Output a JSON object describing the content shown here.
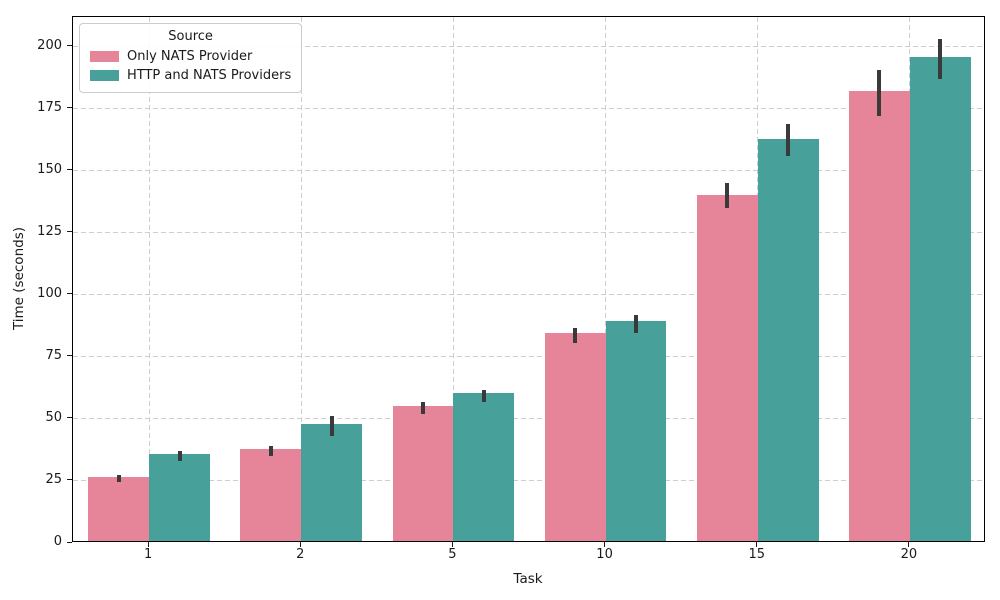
{
  "chart_data": {
    "type": "bar",
    "title": "",
    "xlabel": "Task",
    "ylabel": "Time (seconds)",
    "categories": [
      "1",
      "2",
      "5",
      "10",
      "15",
      "20"
    ],
    "series": [
      {
        "name": "Only NATS Provider",
        "color": "#e6849a",
        "values": [
          26,
          37,
          54.5,
          84,
          139.5,
          181.5
        ],
        "err_lo": [
          24.5,
          35,
          52,
          80.5,
          135,
          172
        ],
        "err_hi": [
          27.5,
          39,
          57,
          86.5,
          145,
          190.5
        ]
      },
      {
        "name": "HTTP and NATS Providers",
        "color": "#47a09a",
        "values": [
          35,
          47,
          59.5,
          88.5,
          162,
          195
        ],
        "err_lo": [
          33,
          43,
          57,
          84.5,
          156,
          187
        ],
        "err_hi": [
          37,
          51,
          61.5,
          92,
          169,
          203
        ]
      }
    ],
    "yticks": [
      0,
      25,
      50,
      75,
      100,
      125,
      150,
      175,
      200
    ],
    "ylim": [
      0,
      212
    ],
    "legend": {
      "title": "Source",
      "position": "upper-left"
    },
    "grid": "both-dashed",
    "error_bar_color": "#3a3a3a",
    "bar_group_width_fraction": 0.8
  }
}
